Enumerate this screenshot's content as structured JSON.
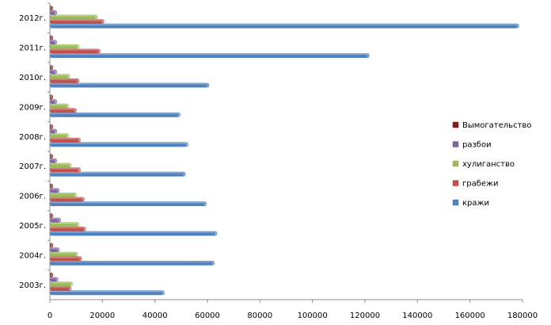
{
  "chart_data": {
    "type": "bar",
    "orientation": "horizontal",
    "title": "",
    "xlabel": "",
    "ylabel": "",
    "categories": [
      "2003г.",
      "2004г.",
      "2005г.",
      "2006г.",
      "2007г.",
      "2008г.",
      "2009г.",
      "2010г.",
      "2011г.",
      "2012г."
    ],
    "series": [
      {
        "name": "кражи",
        "color": "#4f81bd",
        "values": [
          43000,
          62000,
          63000,
          59000,
          51000,
          52000,
          49000,
          60000,
          121000,
          178000
        ]
      },
      {
        "name": "грабежи",
        "color": "#c0504d",
        "values": [
          7500,
          11500,
          13000,
          12500,
          11000,
          11000,
          9500,
          10500,
          18500,
          20000
        ]
      },
      {
        "name": "хулиганство",
        "color": "#9bbb59",
        "values": [
          8000,
          10000,
          10500,
          9500,
          7500,
          6500,
          6500,
          7000,
          10500,
          17500
        ]
      },
      {
        "name": "разбои",
        "color": "#8064a2",
        "values": [
          2500,
          3000,
          3500,
          3000,
          2000,
          2000,
          2000,
          2000,
          2000,
          2000
        ]
      },
      {
        "name": "Вымогательство",
        "color": "#7f1f1a",
        "values": [
          500,
          500,
          500,
          500,
          500,
          500,
          500,
          500,
          500,
          500
        ]
      }
    ],
    "xlim": [
      0,
      180000
    ],
    "xticks": [
      "0",
      "20000",
      "40000",
      "60000",
      "80000",
      "100000",
      "120000",
      "140000",
      "160000",
      "180000"
    ],
    "legend_order": [
      "Вымогательство",
      "разбои",
      "хулиганство",
      "грабежи",
      "кражи"
    ],
    "legend_position": "right",
    "grid": false
  }
}
